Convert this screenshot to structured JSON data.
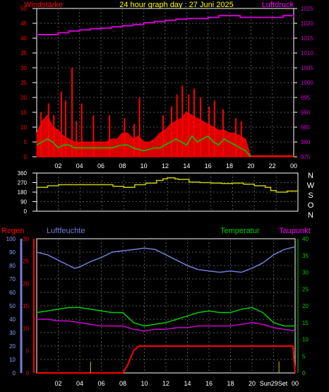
{
  "colors": {
    "background": "#000000",
    "grid": "#555555",
    "axis_white": "#ffffff",
    "wind": "#ff0000",
    "wind_gust_bar": "#ff0000",
    "wind_avg": "#00cc00",
    "wind_calm": "#c8c8a0",
    "pressure": "#cc00cc",
    "direction": "#c8c800",
    "rain": "#ff0000",
    "humidity": "#6f7fd8",
    "temperature": "#00cc00",
    "dewpoint": "#cc00cc",
    "left_label_red": "#ff0000",
    "humidity_label": "#6f7fd8",
    "temp_label": "#00cc00",
    "dew_label": "#ff00ff",
    "rain_axis": "#ff0000",
    "hum_axis": "#6f7fd8",
    "title": "#ffff00"
  },
  "chart_data": [
    {
      "type": "bar",
      "title": "24 hour graph day : 27 Juni 2025",
      "left_label": "Windstärke",
      "right_label": "Luftdruck",
      "x_ticks": [
        "02",
        "04",
        "06",
        "08",
        "10",
        "12",
        "14",
        "16",
        "18",
        "20",
        "22",
        "00"
      ],
      "y_left_ticks": [
        "0",
        "5",
        "10",
        "15",
        "20",
        "25",
        "30",
        "35",
        "40",
        "45",
        "50"
      ],
      "y_left_range": [
        0,
        50
      ],
      "y_right_ticks": [
        "975",
        "980",
        "985",
        "990",
        "995",
        "1000",
        "1005",
        "1010",
        "1015",
        "1020",
        "1025"
      ],
      "y_right_range": [
        975,
        1025
      ],
      "grid": true,
      "series": [
        {
          "name": "Windstärke",
          "hours": [
            0,
            0.5,
            1,
            1.5,
            2,
            2.5,
            3,
            3.5,
            4,
            4.5,
            5,
            5.5,
            6,
            6.5,
            7,
            7.5,
            8,
            8.5,
            9,
            9.5,
            10,
            10.5,
            11,
            11.5,
            12,
            12.5,
            13,
            13.5,
            14,
            14.5,
            15,
            15.5,
            16,
            16.5,
            17,
            17.5,
            18,
            18.5,
            19,
            19.5,
            20,
            21,
            22,
            23,
            24
          ],
          "values": [
            8,
            12,
            14,
            10,
            9,
            7,
            6,
            5,
            5,
            5,
            5,
            5,
            5,
            5,
            6,
            6,
            8,
            8,
            6,
            7,
            5,
            5,
            6,
            8,
            9,
            11,
            12,
            13,
            15,
            14,
            13,
            12,
            11,
            10,
            9,
            9,
            8,
            8,
            7,
            6,
            0,
            0,
            0,
            0,
            0
          ]
        },
        {
          "name": "Böen max",
          "hours": [
            0.4,
            1.1,
            1.6,
            2.3,
            2.7,
            3.3,
            3.7,
            4.2,
            5.3,
            6.8,
            8.2,
            9.1,
            9.6,
            11.8,
            12.6,
            13.1,
            13.6,
            14.2,
            14.7,
            15.3,
            16.1,
            16.6,
            17.4,
            18.6,
            19.1
          ],
          "values": [
            15,
            18,
            14,
            22,
            19,
            30,
            12,
            18,
            14,
            14,
            13,
            11,
            20,
            14,
            17,
            21,
            24,
            21,
            23,
            20,
            17,
            19,
            16,
            13,
            12
          ]
        },
        {
          "name": "Windmittel",
          "hours": [
            0,
            0.5,
            1,
            1.5,
            2,
            2.5,
            3,
            3.5,
            4,
            5,
            6,
            7,
            8,
            8.5,
            9,
            10,
            11,
            11.5,
            12,
            12.5,
            13,
            13.5,
            14,
            14.5,
            15,
            15.5,
            16,
            16.5,
            17,
            17.5,
            18,
            18.5,
            19,
            19.5,
            20
          ],
          "values": [
            4,
            5,
            6,
            5,
            3,
            4,
            4,
            3,
            3,
            3,
            3,
            3,
            4,
            4,
            3,
            2,
            3,
            3,
            4,
            5,
            6,
            5,
            4,
            7,
            5,
            6,
            7,
            5,
            4,
            6,
            5,
            4,
            3,
            2,
            0
          ]
        },
        {
          "name": "Luftdruck",
          "hours": [
            0,
            1,
            2,
            3,
            4,
            5,
            6,
            7,
            8,
            9,
            10,
            11,
            12,
            13,
            14,
            15,
            16,
            17,
            18,
            19,
            20,
            21,
            22,
            23,
            24
          ],
          "values": [
            1016.2,
            1016.2,
            1016.8,
            1017.4,
            1017.8,
            1018.2,
            1018.4,
            1018.8,
            1019.2,
            1019.6,
            1020.2,
            1020.6,
            1021.0,
            1021.4,
            1021.6,
            1021.6,
            1022.0,
            1022.6,
            1022.6,
            1022.0,
            1022.0,
            1022.0,
            1022.0,
            1022.6,
            1022.0
          ]
        }
      ]
    },
    {
      "type": "line",
      "right_labels": [
        "N",
        "W",
        "S",
        "O",
        "N"
      ],
      "y_ticks": [
        "0",
        "90",
        "180",
        "270",
        "360"
      ],
      "y_range": [
        0,
        360
      ],
      "x_ticks": [
        "02",
        "04",
        "06",
        "08",
        "10",
        "12",
        "14",
        "16",
        "18",
        "20",
        "22",
        "00"
      ],
      "series": [
        {
          "name": "Windrichtung",
          "hours": [
            0,
            0.5,
            1,
            2,
            3,
            4,
            5,
            6,
            7,
            8,
            9,
            10,
            11,
            11.6,
            12,
            12.7,
            13,
            14,
            15,
            16,
            17,
            18,
            19,
            20,
            21,
            21.5,
            22,
            23,
            24
          ],
          "values": [
            225,
            225,
            240,
            250,
            250,
            250,
            250,
            250,
            235,
            225,
            250,
            265,
            290,
            305,
            315,
            305,
            300,
            275,
            270,
            265,
            262,
            265,
            255,
            240,
            225,
            195,
            180,
            190,
            175
          ]
        }
      ]
    },
    {
      "type": "line",
      "left_label_1": "Regen",
      "left_label_2": "Luftfeuchte",
      "right_label_1": "Temperatur",
      "right_label_2": "Taupunkt",
      "x_ticks": [
        "02",
        "04",
        "06",
        "08",
        "10",
        "12",
        "14",
        "16",
        "18",
        "20",
        "Sun29Set",
        "00"
      ],
      "hum_ticks": [
        "0",
        "10",
        "20",
        "30",
        "40",
        "50",
        "60",
        "70",
        "80",
        "90",
        "100"
      ],
      "hum_range": [
        0,
        100
      ],
      "rain_ticks": [
        "0",
        "5",
        "10",
        "15",
        "20",
        "25",
        "30"
      ],
      "rain_range": [
        0,
        30
      ],
      "temp_ticks": [
        "0",
        "5",
        "10",
        "15",
        "20",
        "25",
        "30",
        "35",
        "40"
      ],
      "temp_range": [
        0,
        40
      ],
      "series": [
        {
          "name": "Luftfeuchte",
          "hours": [
            0,
            1,
            2,
            3,
            3.5,
            4,
            5,
            6,
            7,
            8,
            9,
            10,
            11,
            12,
            13,
            14,
            15,
            16,
            17,
            18,
            19,
            20,
            21,
            22,
            23,
            24
          ],
          "values": [
            90,
            88,
            84,
            80,
            78,
            79,
            83,
            86,
            90,
            91,
            92,
            93,
            92,
            88,
            84,
            80,
            77,
            76,
            75,
            76,
            75,
            78,
            82,
            88,
            92,
            94
          ]
        },
        {
          "name": "Regen",
          "hours": [
            0,
            7,
            8,
            8.5,
            9,
            9.5,
            10,
            11,
            12,
            13,
            14,
            15,
            16,
            17,
            18,
            19,
            20,
            21,
            22,
            23,
            23.8,
            24
          ],
          "values": [
            0,
            0,
            0,
            2,
            5,
            6,
            6,
            6,
            6,
            6,
            6,
            6,
            6,
            6,
            6,
            6,
            6,
            6,
            6,
            6,
            6,
            0
          ]
        },
        {
          "name": "Temperatur",
          "hours": [
            0,
            1,
            2,
            3,
            4,
            5,
            6,
            7,
            8,
            9,
            10,
            11,
            12,
            13,
            14,
            15,
            16,
            17,
            18,
            19,
            20,
            21,
            22,
            23,
            24
          ],
          "values": [
            18,
            18.5,
            19,
            19.5,
            19.5,
            19,
            18.5,
            18,
            18,
            15,
            14,
            14.5,
            15,
            16,
            17,
            18,
            18.5,
            18,
            18,
            19,
            19.5,
            18,
            15,
            14,
            14
          ]
        },
        {
          "name": "Taupunkt",
          "hours": [
            0,
            1,
            2,
            3,
            4,
            5,
            6,
            7,
            8,
            9,
            10,
            11,
            12,
            13,
            14,
            15,
            16,
            17,
            18,
            19,
            20,
            21,
            22,
            23,
            24
          ],
          "values": [
            16,
            16,
            15.5,
            15.5,
            15,
            14.5,
            14,
            14,
            14,
            13,
            12.5,
            13,
            13,
            13.5,
            13.5,
            14,
            14,
            14,
            14,
            14.5,
            15,
            14.5,
            13.5,
            13,
            12.5
          ]
        },
        {
          "name": "Sonnenmarker",
          "hours": [
            5,
            22.5
          ],
          "values": [
            0,
            0
          ]
        }
      ]
    }
  ]
}
